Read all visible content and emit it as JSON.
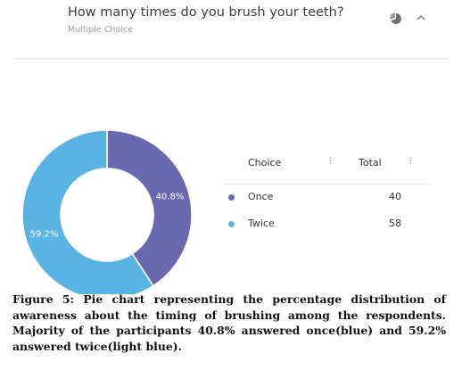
{
  "question": {
    "title": "How many times do you brush your teeth?",
    "type": "Multiple Choice"
  },
  "icons": {
    "view_toggle": "pie-chart-icon",
    "collapse": "chevron-up-icon"
  },
  "chart_data": {
    "type": "pie",
    "style": "donut",
    "categories": [
      "Once",
      "Twice"
    ],
    "values": [
      40,
      58
    ],
    "percent_labels": [
      "40.8%",
      "59.2%"
    ],
    "colors": [
      "#6a69b0",
      "#5ab4e3"
    ]
  },
  "table": {
    "headers": {
      "choice": "Choice",
      "total": "Total"
    },
    "rows": [
      {
        "label": "Once",
        "value": "40",
        "color": "#6a69b0"
      },
      {
        "label": "Twice",
        "value": "58",
        "color": "#5ab4e3"
      }
    ]
  },
  "caption": "Figure 5: Pie chart representing the percentage distribution of awareness about the timing of brushing among the respondents. Majority of the participants 40.8% answered once(blue) and 59.2% answered twice(light blue)."
}
